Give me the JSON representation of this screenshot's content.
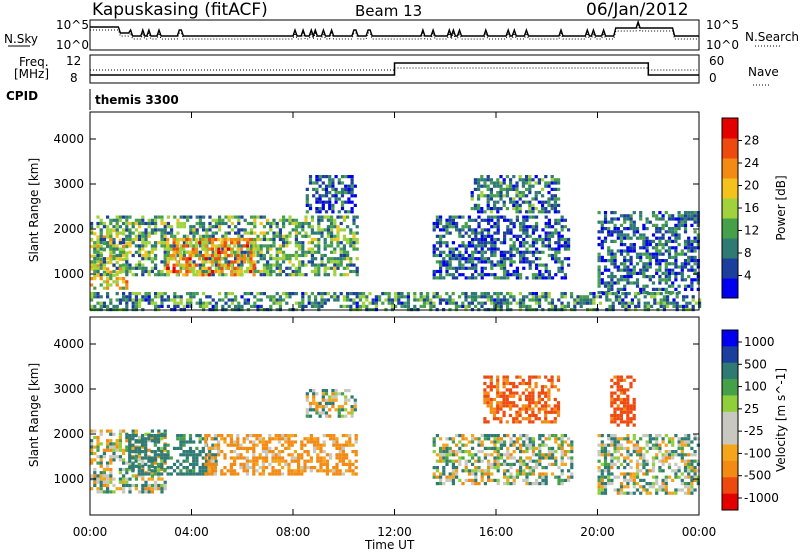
{
  "header": {
    "station": "Kapuskasing (fitACF)",
    "beam": "Beam 13",
    "date": "06/Jan/2012"
  },
  "panels": {
    "nsky_label": "N.Sky",
    "nsearch_label": "N.Search",
    "freq_label_1": "Freq.",
    "freq_label_2": "[MHz]",
    "nave_label": "Nave",
    "cpid_label": "CPID",
    "cpid_value": "themis 3300",
    "nsky_ticks": [
      "10^5",
      "10^0"
    ],
    "nsearch_ticks": [
      "10^5",
      "10^0"
    ],
    "freq_ticks": [
      "12",
      "8"
    ],
    "nave_ticks": [
      "60",
      "0"
    ]
  },
  "colors": {
    "power": [
      "#0000ee",
      "#1c3f9e",
      "#2f7a73",
      "#46a04a",
      "#9fd23c",
      "#f4c21c",
      "#f28a14",
      "#ee4a10",
      "#e50000"
    ],
    "velocity": [
      "#0000ee",
      "#1c3f9e",
      "#2f7a73",
      "#46a04a",
      "#8fd03a",
      "#c8c8c0",
      "#c8c8c0",
      "#f4a51c",
      "#f28a14",
      "#ee4a10",
      "#e50000"
    ],
    "ground": "#c8c8c0"
  },
  "chart_data": [
    {
      "type": "heatmap",
      "name": "power",
      "ylabel": "Slant Range [km]",
      "yticks": [
        1000,
        2000,
        3000,
        4000
      ],
      "ylim": [
        200,
        4600
      ],
      "colorbar_label": "Power [dB]",
      "colorbar_ticks": [
        4,
        8,
        12,
        16,
        20,
        24,
        28
      ],
      "colorbar_range": [
        0,
        32
      ],
      "regions": [
        {
          "t0": 0.0,
          "t1": 1.5,
          "r0": 700,
          "r1": 2000,
          "value": 18
        },
        {
          "t0": 0.0,
          "t1": 10.5,
          "r0": 1000,
          "r1": 2300,
          "value": 12
        },
        {
          "t0": 3.0,
          "t1": 6.5,
          "r0": 1000,
          "r1": 1800,
          "value": 22
        },
        {
          "t0": 8.5,
          "t1": 10.5,
          "r0": 2400,
          "r1": 3200,
          "value": 6
        },
        {
          "t0": 13.5,
          "t1": 18.8,
          "r0": 900,
          "r1": 2300,
          "value": 7
        },
        {
          "t0": 15.0,
          "t1": 18.5,
          "r0": 2400,
          "r1": 3200,
          "value": 9
        },
        {
          "t0": 20.0,
          "t1": 24.0,
          "r0": 600,
          "r1": 2400,
          "value": 7
        },
        {
          "t0": 0.0,
          "t1": 24.0,
          "r0": 200,
          "r1": 600,
          "value": 10
        }
      ]
    },
    {
      "type": "heatmap",
      "name": "velocity",
      "ylabel": "Slant Range [km]",
      "yticks": [
        1000,
        2000,
        3000,
        4000
      ],
      "ylim": [
        200,
        4600
      ],
      "colorbar_label": "Velocity [m s^-1]",
      "colorbar_ticks": [
        "1000",
        "500",
        "100",
        "25",
        "-25",
        "-100",
        "-500",
        "-1000"
      ],
      "xlabel": "Time UT",
      "xticks": [
        "00:00",
        "04:00",
        "08:00",
        "12:00",
        "16:00",
        "20:00",
        "00:00"
      ],
      "xlim": [
        0,
        24
      ],
      "regions": [
        {
          "t0": 0.0,
          "t1": 3.0,
          "r0": 700,
          "r1": 2100,
          "value": 0
        },
        {
          "t0": 1.5,
          "t1": 5.0,
          "r0": 1100,
          "r1": 2000,
          "value": 150
        },
        {
          "t0": 4.5,
          "t1": 10.5,
          "r0": 1100,
          "r1": 2000,
          "value": -150
        },
        {
          "t0": 8.5,
          "t1": 10.5,
          "r0": 2400,
          "r1": 3000,
          "value": 0
        },
        {
          "t0": 13.5,
          "t1": 19.0,
          "r0": 900,
          "r1": 2000,
          "value": 0
        },
        {
          "t0": 15.5,
          "t1": 18.5,
          "r0": 2300,
          "r1": 3300,
          "value": -300
        },
        {
          "t0": 20.0,
          "t1": 24.0,
          "r0": 700,
          "r1": 2000,
          "value": 0
        },
        {
          "t0": 20.5,
          "t1": 21.5,
          "r0": 2200,
          "r1": 3300,
          "value": -400
        }
      ]
    }
  ]
}
